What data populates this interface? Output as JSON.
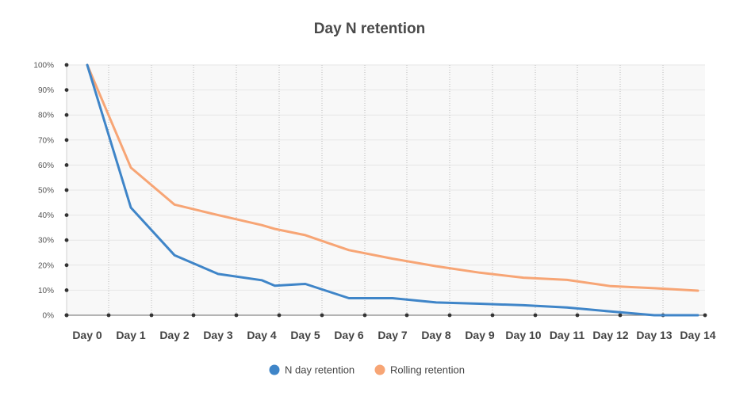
{
  "chart_data": {
    "type": "line",
    "title": "Day N retention",
    "xlabel": "",
    "ylabel": "",
    "ylim": [
      0,
      100
    ],
    "y_ticks": [
      "0%",
      "10%",
      "20%",
      "30%",
      "40%",
      "50%",
      "60%",
      "70%",
      "80%",
      "90%",
      "100%"
    ],
    "categories": [
      "Day 0",
      "Day 1",
      "Day 2",
      "Day 3",
      "Day 4",
      "Day 5",
      "Day 6",
      "Day 7",
      "Day 8",
      "Day 9",
      "Day 10",
      "Day 11",
      "Day 12",
      "Day 13",
      "Day 14"
    ],
    "series": [
      {
        "name": "N day retention",
        "color": "#3f85c8",
        "points": [
          [
            0,
            100
          ],
          [
            1,
            43
          ],
          [
            2,
            24
          ],
          [
            3,
            16.5
          ],
          [
            4,
            14
          ],
          [
            4.3,
            11.8
          ],
          [
            5,
            12.5
          ],
          [
            6,
            6.8
          ],
          [
            7,
            6.8
          ],
          [
            8,
            5.1
          ],
          [
            9,
            4.6
          ],
          [
            10,
            4
          ],
          [
            11,
            3.1
          ],
          [
            12,
            1.5
          ],
          [
            13,
            0
          ],
          [
            14,
            0
          ]
        ]
      },
      {
        "name": "Rolling retention",
        "color": "#f7a575",
        "points": [
          [
            0,
            100
          ],
          [
            1,
            59
          ],
          [
            2,
            44.2
          ],
          [
            3,
            40
          ],
          [
            4,
            36
          ],
          [
            4.3,
            34.5
          ],
          [
            5,
            32
          ],
          [
            5.5,
            29
          ],
          [
            6,
            26
          ],
          [
            7,
            22.6
          ],
          [
            8,
            19.6
          ],
          [
            9,
            17
          ],
          [
            10,
            15
          ],
          [
            11,
            14.1
          ],
          [
            12,
            11.6
          ],
          [
            13,
            10.8
          ],
          [
            14,
            9.8
          ]
        ]
      }
    ],
    "grid": true,
    "legend": "bottom-center"
  }
}
